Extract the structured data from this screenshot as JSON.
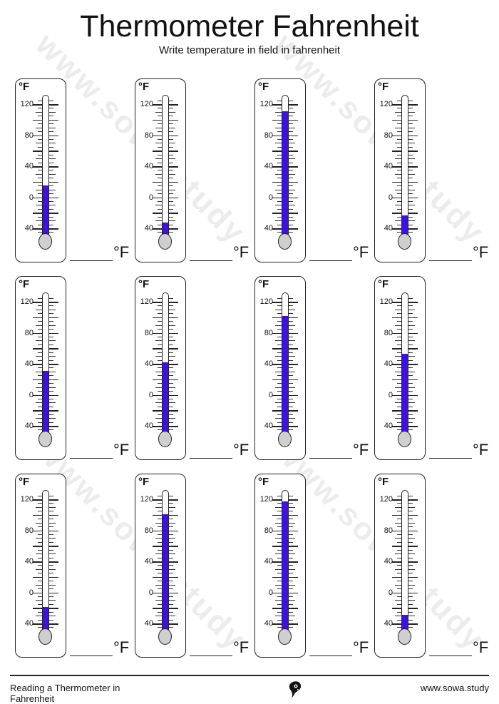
{
  "header": {
    "title": "Thermometer Fahrenheit",
    "subtitle": "Write temperature in field in fahrenheit"
  },
  "watermark": {
    "text": "www.sowa.study"
  },
  "scale": {
    "unit": "°F",
    "min": -50,
    "max": 130,
    "label_values": [
      120,
      80,
      40,
      0,
      -40
    ],
    "tick_labels": [
      "120",
      "80",
      "40",
      "0",
      "40"
    ]
  },
  "colors": {
    "fill": "#3f10e6",
    "bulb": "#cfcfcf",
    "outline": "#222222"
  },
  "answer_unit": "°F",
  "thermometers": [
    {
      "value": 14
    },
    {
      "value": -34
    },
    {
      "value": 110
    },
    {
      "value": -24
    },
    {
      "value": 30
    },
    {
      "value": 41
    },
    {
      "value": 101
    },
    {
      "value": 52
    },
    {
      "value": -20
    },
    {
      "value": 100
    },
    {
      "value": 116
    },
    {
      "value": -30
    }
  ],
  "footer": {
    "left_text": "Reading a Thermometer in Fahrenheit",
    "right_text": "www.sowa.study",
    "logo_icon": "owl-logo-icon"
  }
}
